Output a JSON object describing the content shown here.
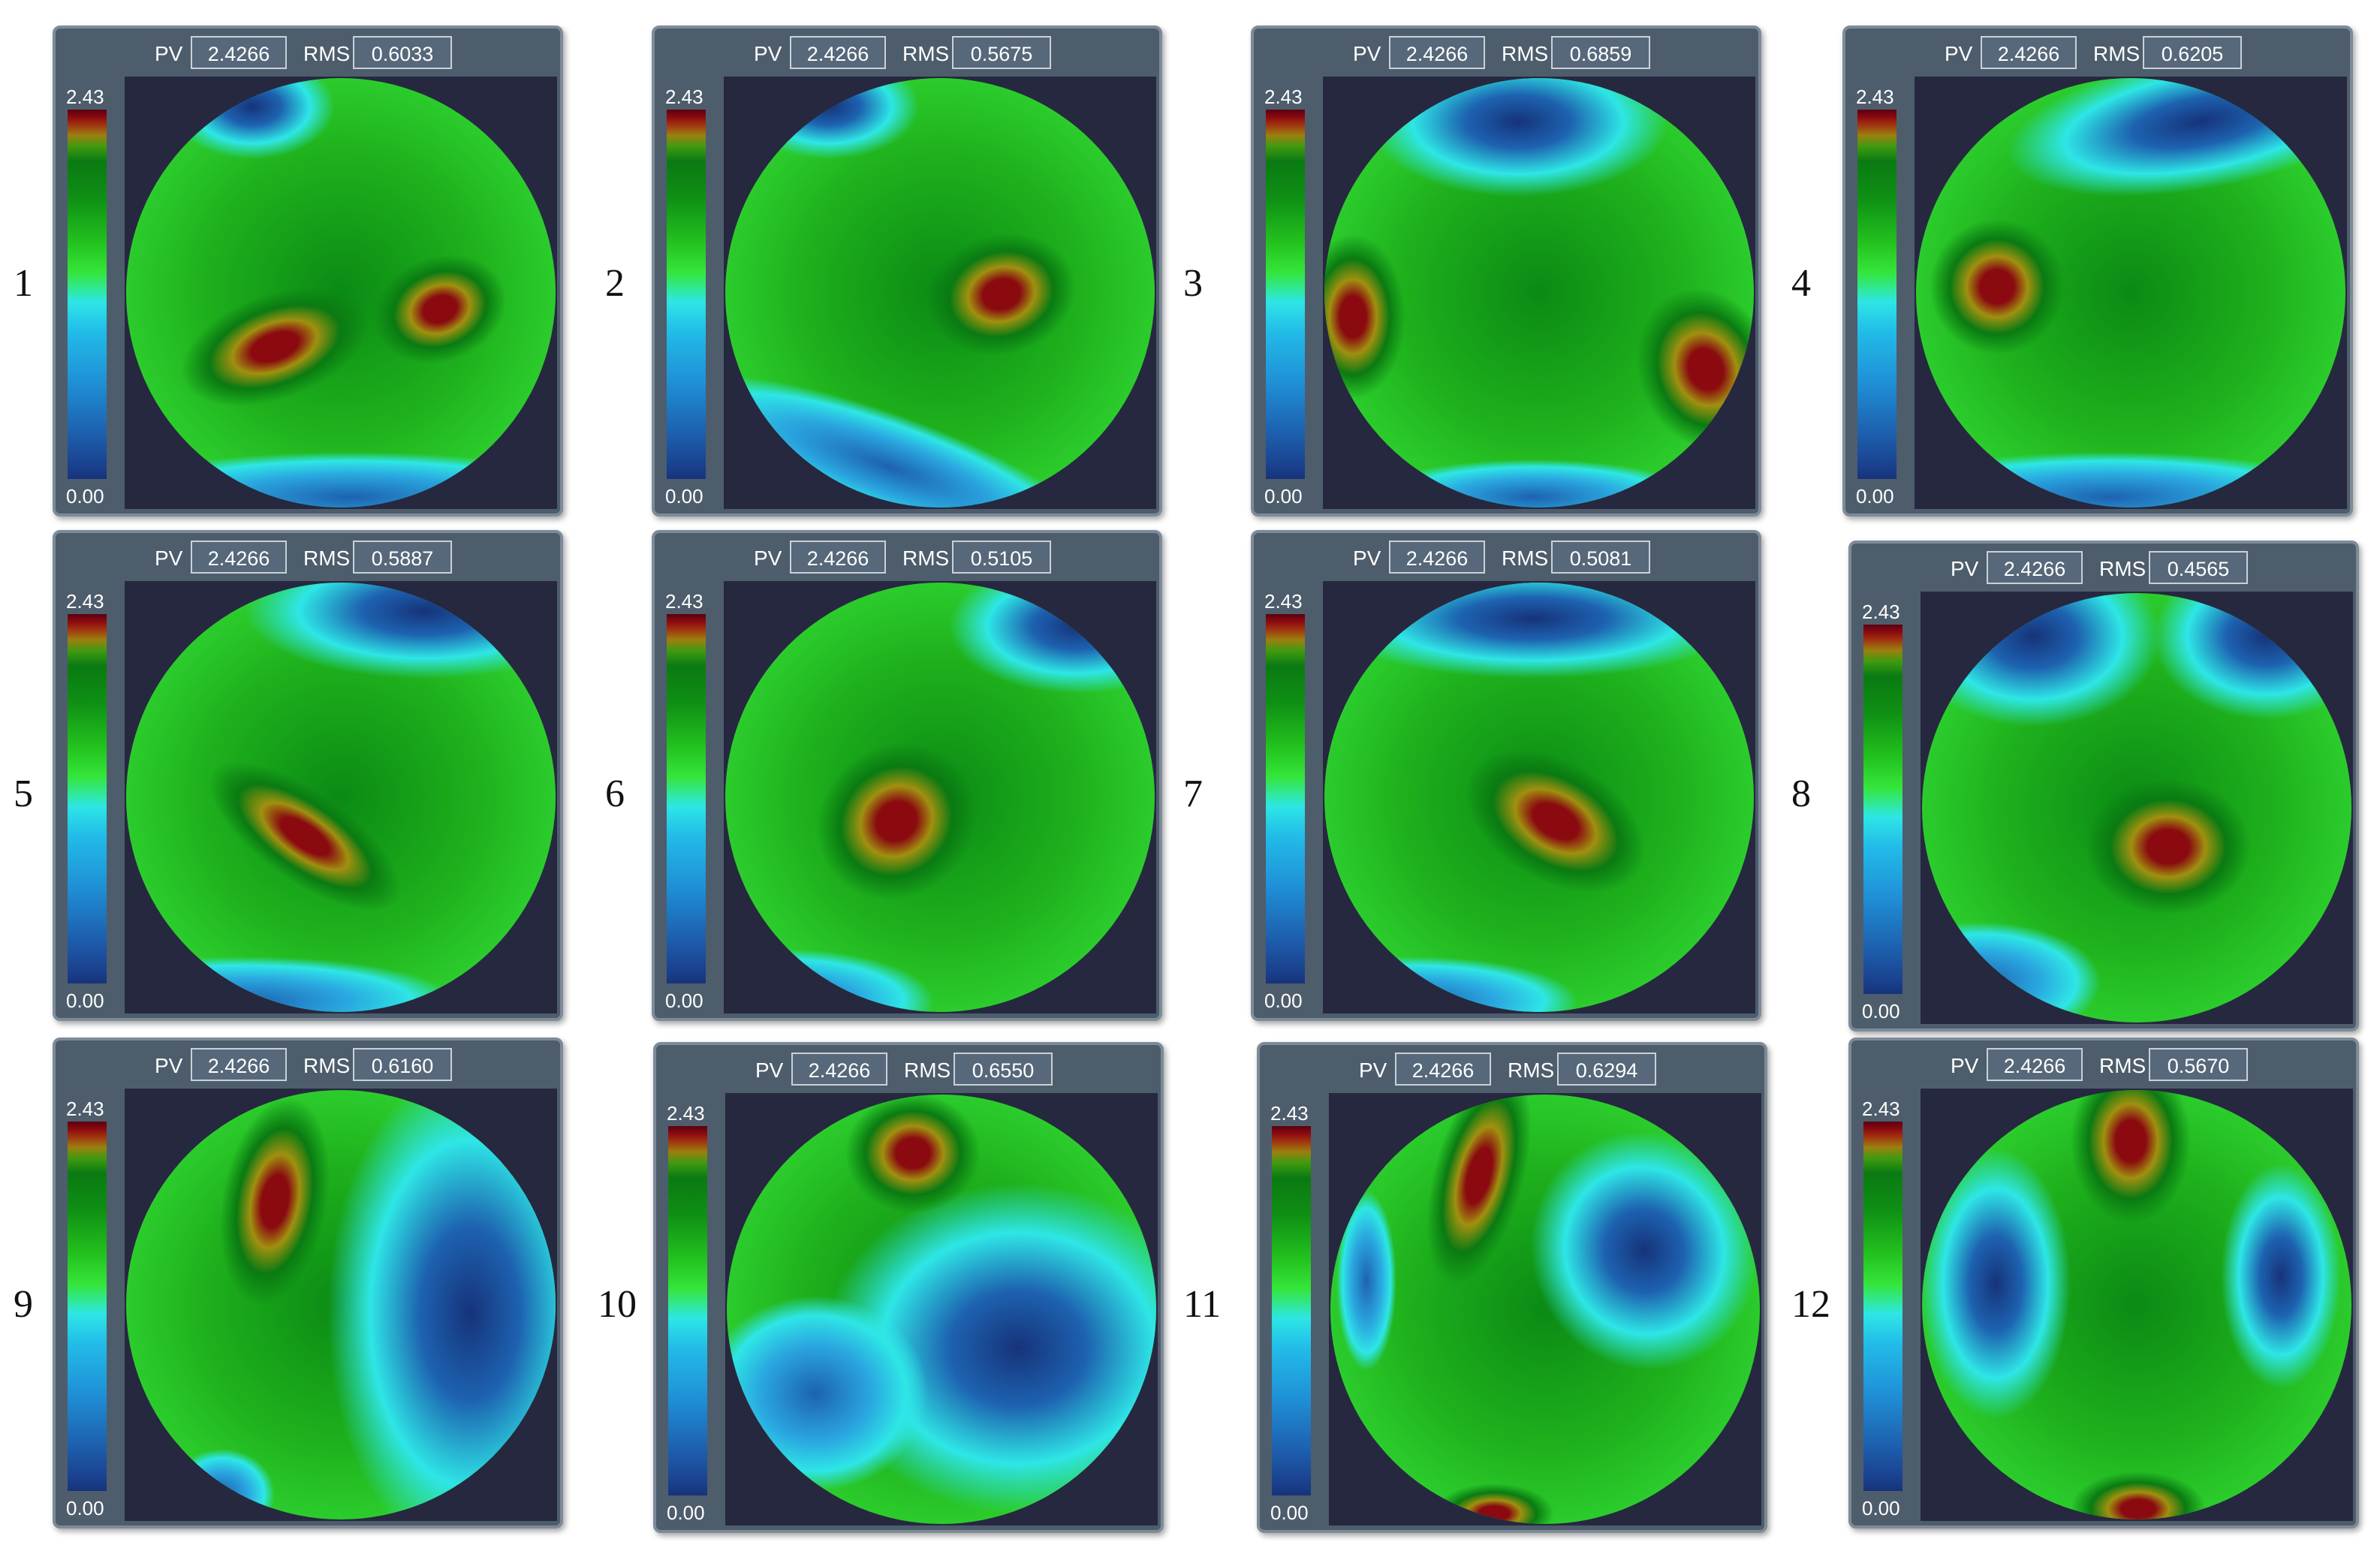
{
  "panels": [
    {
      "number": "1",
      "pv_label": "PV",
      "pv": "2.4266",
      "rms_label": "RMS",
      "rms": "0.6033",
      "scale_max": "2.43",
      "scale_min": "0.00"
    },
    {
      "number": "2",
      "pv_label": "PV",
      "pv": "2.4266",
      "rms_label": "RMS",
      "rms": "0.5675",
      "scale_max": "2.43",
      "scale_min": "0.00"
    },
    {
      "number": "3",
      "pv_label": "PV",
      "pv": "2.4266",
      "rms_label": "RMS",
      "rms": "0.6859",
      "scale_max": "2.43",
      "scale_min": "0.00"
    },
    {
      "number": "4",
      "pv_label": "PV",
      "pv": "2.4266",
      "rms_label": "RMS",
      "rms": "0.6205",
      "scale_max": "2.43",
      "scale_min": "0.00"
    },
    {
      "number": "5",
      "pv_label": "PV",
      "pv": "2.4266",
      "rms_label": "RMS",
      "rms": "0.5887",
      "scale_max": "2.43",
      "scale_min": "0.00"
    },
    {
      "number": "6",
      "pv_label": "PV",
      "pv": "2.4266",
      "rms_label": "RMS",
      "rms": "0.5105",
      "scale_max": "2.43",
      "scale_min": "0.00"
    },
    {
      "number": "7",
      "pv_label": "PV",
      "pv": "2.4266",
      "rms_label": "RMS",
      "rms": "0.5081",
      "scale_max": "2.43",
      "scale_min": "0.00"
    },
    {
      "number": "8",
      "pv_label": "PV",
      "pv": "2.4266",
      "rms_label": "RMS",
      "rms": "0.4565",
      "scale_max": "2.43",
      "scale_min": "0.00"
    },
    {
      "number": "9",
      "pv_label": "PV",
      "pv": "2.4266",
      "rms_label": "RMS",
      "rms": "0.6160",
      "scale_max": "2.43",
      "scale_min": "0.00"
    },
    {
      "number": "10",
      "pv_label": "PV",
      "pv": "2.4266",
      "rms_label": "RMS",
      "rms": "0.6550",
      "scale_max": "2.43",
      "scale_min": "0.00"
    },
    {
      "number": "11",
      "pv_label": "PV",
      "pv": "2.4266",
      "rms_label": "RMS",
      "rms": "0.6294",
      "scale_max": "2.43",
      "scale_min": "0.00"
    },
    {
      "number": "12",
      "pv_label": "PV",
      "pv": "2.4266",
      "rms_label": "RMS",
      "rms": "0.5670",
      "scale_max": "2.43",
      "scale_min": "0.00"
    }
  ],
  "colors": {
    "panel_bg": "#4e5d6c",
    "map_bg": "#262840",
    "peak": "#8a0a10",
    "high": "#a09010",
    "mid_high": "#0a7a12",
    "mid": "#35e53a",
    "mid_low": "#2ee6e6",
    "low": "#1d62b0",
    "min": "#16337a"
  }
}
